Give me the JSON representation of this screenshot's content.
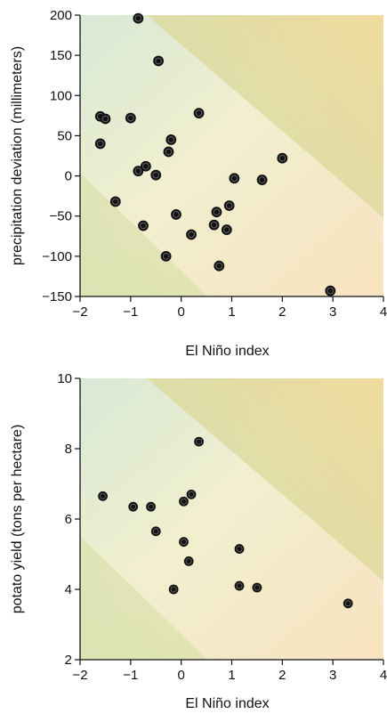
{
  "chart_data": [
    {
      "type": "scatter",
      "title": "",
      "xlabel": "El Niño index",
      "ylabel": "precipitation deviation (millimeters)",
      "xlim": [
        -2,
        4
      ],
      "ylim": [
        -150,
        200
      ],
      "xticks": [
        -2,
        -1,
        0,
        1,
        2,
        3,
        4
      ],
      "yticks": [
        -150,
        -100,
        -50,
        0,
        50,
        100,
        150,
        200
      ],
      "xtick_labels": [
        "−2",
        "−1",
        "0",
        "1",
        "2",
        "3",
        "4"
      ],
      "ytick_labels": [
        "−150",
        "−100",
        "−50",
        "0",
        "50",
        "100",
        "150",
        "200"
      ],
      "grid": false,
      "point_color": "#111111",
      "background": "diagonal green-to-cream-to-orange gradient bands",
      "points": [
        {
          "x": -0.85,
          "y": 196
        },
        {
          "x": -0.45,
          "y": 143
        },
        {
          "x": 0.35,
          "y": 78
        },
        {
          "x": -1.6,
          "y": 74
        },
        {
          "x": -1.5,
          "y": 71
        },
        {
          "x": -1.0,
          "y": 72
        },
        {
          "x": -0.2,
          "y": 45
        },
        {
          "x": -1.6,
          "y": 40
        },
        {
          "x": -0.25,
          "y": 30
        },
        {
          "x": 2.0,
          "y": 22
        },
        {
          "x": -0.7,
          "y": 12
        },
        {
          "x": -0.85,
          "y": 6
        },
        {
          "x": -0.5,
          "y": 1
        },
        {
          "x": 1.05,
          "y": -3
        },
        {
          "x": 1.6,
          "y": -5
        },
        {
          "x": -1.3,
          "y": -32
        },
        {
          "x": 0.95,
          "y": -37
        },
        {
          "x": 0.7,
          "y": -45
        },
        {
          "x": -0.1,
          "y": -48
        },
        {
          "x": -0.75,
          "y": -62
        },
        {
          "x": 0.65,
          "y": -61
        },
        {
          "x": 0.9,
          "y": -67
        },
        {
          "x": 0.2,
          "y": -73
        },
        {
          "x": -0.3,
          "y": -100
        },
        {
          "x": 0.75,
          "y": -112
        },
        {
          "x": 2.95,
          "y": -143
        }
      ]
    },
    {
      "type": "scatter",
      "title": "",
      "xlabel": "El Niño index",
      "ylabel": "potato yield (tons per hectare)",
      "xlim": [
        -2,
        4
      ],
      "ylim": [
        2,
        10
      ],
      "xticks": [
        -2,
        -1,
        0,
        1,
        2,
        3,
        4
      ],
      "yticks": [
        2,
        4,
        6,
        8,
        10
      ],
      "xtick_labels": [
        "−2",
        "−1",
        "0",
        "1",
        "2",
        "3",
        "4"
      ],
      "ytick_labels": [
        "2",
        "4",
        "6",
        "8",
        "10"
      ],
      "grid": false,
      "point_color": "#111111",
      "background": "diagonal green-to-cream-to-orange gradient bands",
      "points": [
        {
          "x": 0.35,
          "y": 8.2
        },
        {
          "x": 0.2,
          "y": 6.7
        },
        {
          "x": -1.55,
          "y": 6.65
        },
        {
          "x": 0.05,
          "y": 6.5
        },
        {
          "x": -0.95,
          "y": 6.35
        },
        {
          "x": -0.6,
          "y": 6.35
        },
        {
          "x": -0.5,
          "y": 5.65
        },
        {
          "x": 0.05,
          "y": 5.35
        },
        {
          "x": 1.15,
          "y": 5.15
        },
        {
          "x": 0.15,
          "y": 4.8
        },
        {
          "x": 1.15,
          "y": 4.1
        },
        {
          "x": 1.5,
          "y": 4.05
        },
        {
          "x": -0.15,
          "y": 4.0
        },
        {
          "x": 3.3,
          "y": 3.6
        }
      ]
    }
  ]
}
